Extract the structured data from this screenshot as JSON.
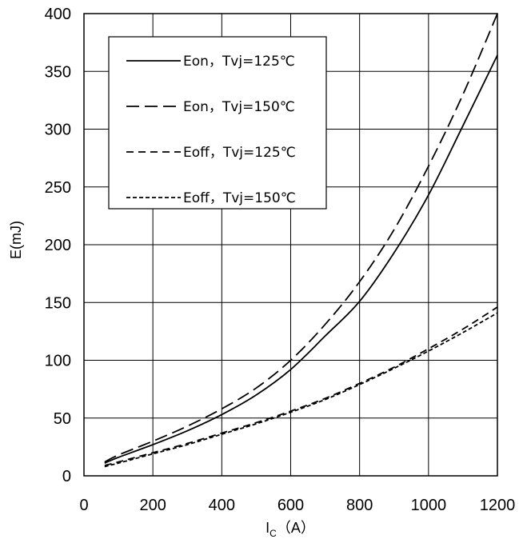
{
  "chart_data": {
    "type": "line",
    "xlabel_main": "I",
    "xlabel_sub": "C",
    "xlabel_unit": "（A）",
    "ylabel": "E(mJ)",
    "xlim": [
      0,
      1200
    ],
    "ylim": [
      0,
      400
    ],
    "x_ticks": [
      "0",
      "200",
      "400",
      "600",
      "800",
      "1000",
      "1200"
    ],
    "y_ticks": [
      "0",
      "50",
      "100",
      "150",
      "200",
      "250",
      "300",
      "350",
      "400"
    ],
    "grid": true,
    "legend_position": "top-left",
    "series": [
      {
        "name": "Eon，Tvj=125℃",
        "style": "solid",
        "x": [
          60,
          100,
          200,
          300,
          400,
          500,
          600,
          700,
          800,
          900,
          1000,
          1100,
          1200
        ],
        "y": [
          11,
          16,
          27,
          39,
          53,
          70,
          92,
          121,
          151,
          193,
          243,
          303,
          364
        ]
      },
      {
        "name": "Eon，Tvj=150℃",
        "style": "long-dash",
        "x": [
          60,
          100,
          200,
          300,
          400,
          500,
          600,
          700,
          800,
          900,
          1000,
          1100,
          1200
        ],
        "y": [
          12,
          18,
          30,
          43,
          58,
          76,
          100,
          131,
          168,
          213,
          268,
          330,
          400
        ]
      },
      {
        "name": "Eoff，Tvj=125℃",
        "style": "dash",
        "x": [
          60,
          100,
          200,
          300,
          400,
          500,
          600,
          700,
          800,
          900,
          1000,
          1100,
          1200
        ],
        "y": [
          9,
          12,
          20,
          28,
          37,
          46,
          56,
          67,
          80,
          94,
          110,
          127,
          146
        ]
      },
      {
        "name": "Eoff，Tvj=150℃",
        "style": "short-dash",
        "x": [
          60,
          100,
          200,
          300,
          400,
          500,
          600,
          700,
          800,
          900,
          1000,
          1100,
          1200
        ],
        "y": [
          8,
          11,
          19,
          27,
          36,
          45,
          55,
          66,
          79,
          93,
          108,
          124,
          141
        ]
      }
    ]
  }
}
